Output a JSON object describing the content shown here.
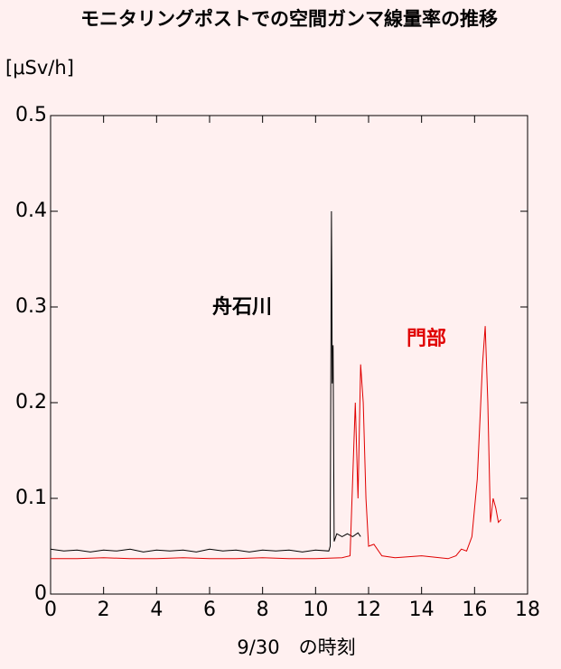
{
  "chart_data": {
    "type": "line",
    "title": "モニタリングポストでの空間ガンマ線量率の推移",
    "y_label": "[μSv/h]",
    "x_label": "9/30　の時刻",
    "annotations": [
      {
        "text": "舟石川",
        "color": "#000000"
      },
      {
        "text": "門部",
        "color": "#e00000"
      }
    ],
    "xlim": [
      0,
      18
    ],
    "xticks": [
      0,
      2,
      4,
      6,
      8,
      10,
      12,
      14,
      16,
      18
    ],
    "ylim": [
      0,
      0.5
    ],
    "yticks": [
      0,
      0.1,
      0.2,
      0.3,
      0.4,
      0.5
    ],
    "series": [
      {
        "color": "#000000",
        "x": [
          0,
          0.5,
          1,
          1.5,
          2,
          2.5,
          3,
          3.5,
          4,
          4.5,
          5,
          5.5,
          6,
          6.5,
          7,
          7.5,
          8,
          8.5,
          9,
          9.5,
          10,
          10.5,
          10.55,
          10.6,
          10.63,
          10.66,
          10.7,
          10.8,
          11,
          11.2,
          11.4,
          11.6,
          11.7
        ],
        "values": [
          0.047,
          0.045,
          0.046,
          0.044,
          0.046,
          0.045,
          0.047,
          0.044,
          0.046,
          0.045,
          0.046,
          0.044,
          0.047,
          0.045,
          0.046,
          0.044,
          0.046,
          0.045,
          0.046,
          0.044,
          0.046,
          0.045,
          0.05,
          0.4,
          0.22,
          0.26,
          0.055,
          0.063,
          0.06,
          0.063,
          0.06,
          0.064,
          0.06
        ]
      },
      {
        "color": "#e00000",
        "x": [
          0,
          1,
          2,
          3,
          4,
          5,
          6,
          7,
          8,
          9,
          10,
          11,
          11.3,
          11.4,
          11.5,
          11.6,
          11.7,
          11.8,
          11.9,
          12,
          12.2,
          12.5,
          13,
          14,
          15,
          15.3,
          15.5,
          15.7,
          15.9,
          16.1,
          16.3,
          16.4,
          16.5,
          16.6,
          16.7,
          16.8,
          16.9,
          17
        ],
        "values": [
          0.037,
          0.037,
          0.038,
          0.037,
          0.037,
          0.038,
          0.037,
          0.037,
          0.038,
          0.037,
          0.037,
          0.038,
          0.04,
          0.12,
          0.2,
          0.1,
          0.24,
          0.2,
          0.1,
          0.05,
          0.052,
          0.04,
          0.038,
          0.04,
          0.037,
          0.04,
          0.047,
          0.045,
          0.06,
          0.12,
          0.24,
          0.28,
          0.2,
          0.075,
          0.1,
          0.09,
          0.075,
          0.078
        ]
      }
    ]
  }
}
